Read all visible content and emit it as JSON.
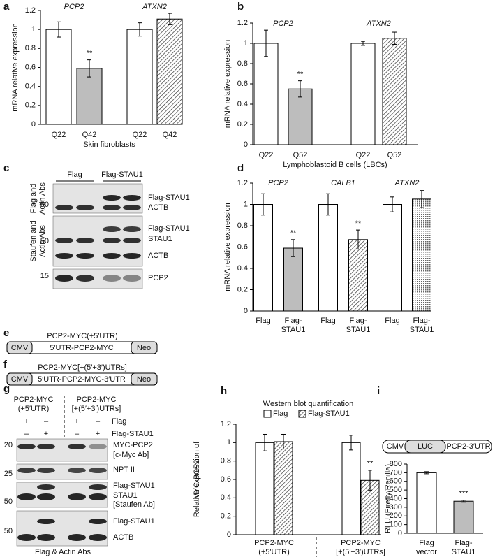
{
  "chart_data": [
    {
      "type": "bar",
      "panel": "a",
      "ylabel": "mRNA relative expression",
      "xlabel": "Skin fibroblasts",
      "group_labels": [
        "PCP2",
        "ATXN2"
      ],
      "categories": [
        "Q22",
        "Q42",
        "Q22",
        "Q42"
      ],
      "values": [
        1,
        0.59,
        1,
        1.11
      ],
      "errors": [
        0.08,
        0.09,
        0.07,
        0.06
      ],
      "significance": [
        null,
        "**",
        null,
        null
      ],
      "colors": [
        "#ffffff",
        "#bdbdbd",
        "#ffffff",
        "#ffffff"
      ],
      "patterns": [
        "solid",
        "solid",
        "solid",
        "hatch"
      ],
      "ylim": [
        0,
        1.2
      ],
      "yticks": [
        0,
        0.2,
        0.4,
        0.6,
        0.8,
        1,
        1.2
      ]
    },
    {
      "type": "bar",
      "panel": "b",
      "ylabel": "mRNA relative expression",
      "xlabel": "Lymphoblastoid B cells (LBCs)",
      "group_labels": [
        "PCP2",
        "ATXN2"
      ],
      "categories": [
        "Q22",
        "Q52",
        "Q22",
        "Q52"
      ],
      "values": [
        1,
        0.55,
        1,
        1.05
      ],
      "errors": [
        0.13,
        0.08,
        0.02,
        0.06
      ],
      "significance": [
        null,
        "**",
        null,
        null
      ],
      "colors": [
        "#ffffff",
        "#bdbdbd",
        "#ffffff",
        "#ffffff"
      ],
      "patterns": [
        "solid",
        "solid",
        "solid",
        "hatch"
      ],
      "ylim": [
        0,
        1.2
      ],
      "yticks": [
        0,
        0.2,
        0.4,
        0.6,
        0.8,
        1,
        1.2
      ]
    },
    {
      "type": "bar",
      "panel": "d",
      "ylabel": "mRNA relative expression",
      "group_labels": [
        "PCP2",
        "CALB1",
        "ATXN2"
      ],
      "categories": [
        [
          "Flag"
        ],
        [
          "Flag-",
          "STAU1"
        ],
        [
          "Flag"
        ],
        [
          "Flag-",
          "STAU1"
        ],
        [
          "Flag"
        ],
        [
          "Flag-",
          "STAU1"
        ]
      ],
      "values": [
        1,
        0.59,
        1,
        0.67,
        1,
        1.05
      ],
      "errors": [
        0.1,
        0.08,
        0.1,
        0.09,
        0.07,
        0.08
      ],
      "significance": [
        null,
        "**",
        null,
        "**",
        null,
        null
      ],
      "colors": [
        "#ffffff",
        "#bdbdbd",
        "#ffffff",
        "#ffffff",
        "#ffffff",
        "#ffffff"
      ],
      "patterns": [
        "solid",
        "solid",
        "solid",
        "hatch",
        "solid",
        "crosshatch"
      ],
      "ylim": [
        0,
        1.2
      ],
      "yticks": [
        0,
        0.2,
        0.4,
        0.6,
        0.8,
        1,
        1.2
      ]
    },
    {
      "type": "bar",
      "panel": "h",
      "title": "Western blot quantification",
      "ylabel": [
        "Relative expression of",
        "MYC-PCP2"
      ],
      "categories": [
        [
          "PCP2-MYC",
          "(+5′UTR)"
        ],
        [
          "PCP2-MYC",
          "[+(5′+3′)UTRs]"
        ]
      ],
      "series": [
        {
          "name": "Flag",
          "color": "#ffffff",
          "pattern": "solid",
          "values": [
            1,
            1
          ],
          "errors": [
            0.09,
            0.08
          ],
          "significance": [
            null,
            null
          ]
        },
        {
          "name": "Flag-STAU1",
          "color": "#ffffff",
          "pattern": "hatch",
          "values": [
            1.01,
            0.59
          ],
          "errors": [
            0.08,
            0.11
          ],
          "significance": [
            null,
            "**"
          ]
        }
      ],
      "ylim": [
        0,
        1.2
      ],
      "yticks": [
        0,
        0.2,
        0.4,
        0.6,
        0.8,
        1,
        1.2
      ]
    },
    {
      "type": "bar",
      "panel": "i",
      "construct": [
        "CMV",
        "LUC",
        "PCP2-3′UTR"
      ],
      "ylabel": "RLU (Firefly/Renilla)",
      "categories": [
        [
          "Flag",
          "vector"
        ],
        [
          "Flag-",
          "STAU1"
        ]
      ],
      "values": [
        700,
        370
      ],
      "errors": [
        12,
        12
      ],
      "significance": [
        null,
        "***"
      ],
      "colors": [
        "#ffffff",
        "#bdbdbd"
      ],
      "patterns": [
        "solid",
        "solid"
      ],
      "ylim": [
        0,
        800
      ],
      "yticks": [
        0,
        100,
        200,
        300,
        400,
        500,
        600,
        700,
        800
      ]
    }
  ],
  "blot_c": {
    "panel": "c",
    "lane_groups": [
      "Flag",
      "Flag-STAU1"
    ],
    "antibody_labels": [
      [
        "Flag and",
        "Actin Abs"
      ],
      [
        "Staufen and",
        "Actin Abs"
      ]
    ],
    "markers": [
      50,
      50,
      15
    ],
    "band_labels": [
      "Flag-STAU1",
      "ACTB",
      "Flag-STAU1",
      "STAU1",
      "ACTB",
      "PCP2"
    ]
  },
  "constructs": [
    {
      "panel": "e",
      "name": "PCP2-MYC(+5′UTR)",
      "parts": [
        "CMV",
        "5′UTR-PCP2-MYC",
        "Neo"
      ]
    },
    {
      "panel": "f",
      "name": "PCP2-MYC[+(5′+3′)UTRs]",
      "parts": [
        "CMV",
        "5′UTR-PCP2-MYC-3′UTR",
        "Neo"
      ]
    }
  ],
  "blot_g": {
    "panel": "g",
    "headers": [
      [
        "PCP2-MYC",
        "(+5′UTR)"
      ],
      [
        "PCP2-MYC",
        "[+(5′+3′)UTRs]"
      ]
    ],
    "treatments": [
      {
        "name": "Flag",
        "signs": [
          "+",
          "–",
          "+",
          "–"
        ]
      },
      {
        "name": "Flag-STAU1",
        "signs": [
          "–",
          "+",
          "–",
          "+"
        ]
      }
    ],
    "markers": [
      20,
      25,
      50,
      50
    ],
    "band_labels": [
      "MYC-PCP2",
      "[c-Myc Ab]",
      "NPT II",
      "Flag-STAU1",
      "STAU1",
      "[Staufen Ab]",
      "Flag-STAU1",
      "ACTB"
    ],
    "footer": "Flag & Actin Abs"
  }
}
